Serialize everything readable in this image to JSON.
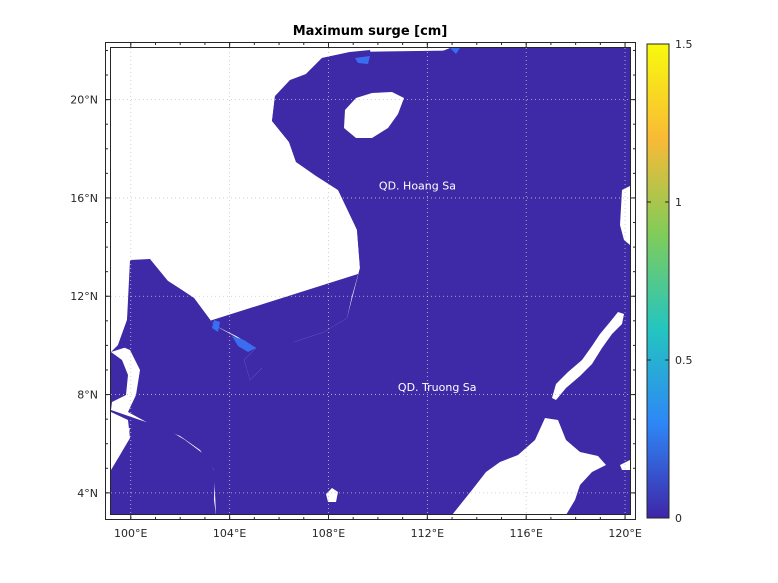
{
  "chart_data": {
    "type": "heatmap",
    "title": "Maximum surge [cm]",
    "x_ticks": [
      "100°E",
      "104°E",
      "108°E",
      "112°E",
      "116°E",
      "120°E"
    ],
    "y_ticks": [
      "4°N",
      "8°N",
      "12°N",
      "16°N",
      "20°N"
    ],
    "x_range": [
      99.2,
      120.2
    ],
    "y_range": [
      3.1,
      22.1
    ],
    "colorbar": {
      "ticks": [
        "0",
        "0.5",
        "1",
        "1.5"
      ],
      "range": [
        0,
        1.5
      ],
      "colors": [
        "#3e26a8",
        "#2e87f7",
        "#24c5bf",
        "#81cc59",
        "#f9ba36",
        "#f8fa0d"
      ]
    },
    "sea_color": "#3e2aa6",
    "highlight_color": "#3a6ef0",
    "grid": true,
    "annotations": [
      {
        "label": "QD. Hoang Sa",
        "lon": 111.6,
        "lat": 16.5
      },
      {
        "label": "QD. Truong Sa",
        "lon": 112.4,
        "lat": 8.3
      }
    ]
  }
}
